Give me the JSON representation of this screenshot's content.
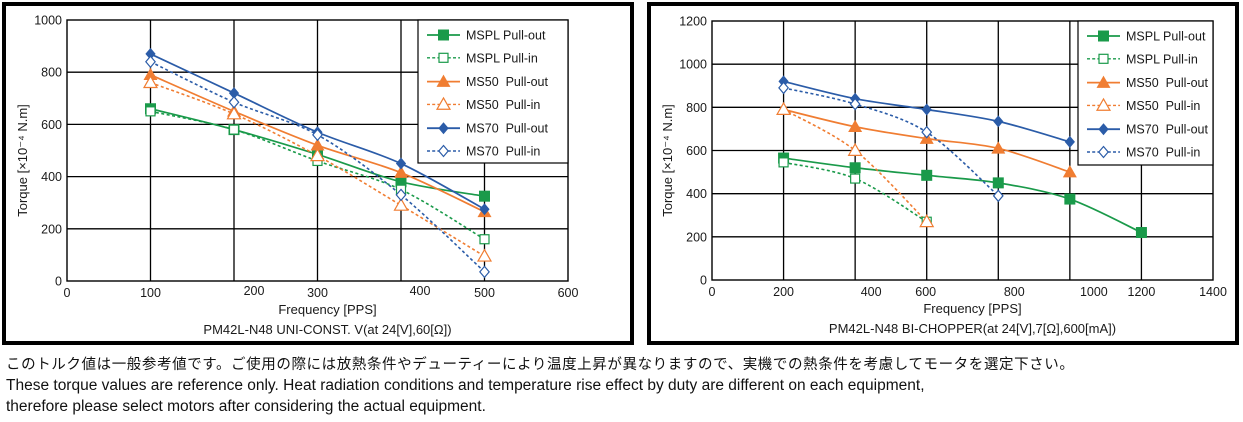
{
  "chart_data": [
    {
      "type": "line",
      "title": "",
      "caption": "PM42L-N48 UNI-CONST. V(at 24[V],60[Ω])",
      "xlabel": "Frequency [PPS]",
      "ylabel": "Torque [×10⁻⁴ N.m]",
      "xlim": [
        0,
        600
      ],
      "ylim": [
        0,
        1000
      ],
      "xticks": [
        0,
        100,
        200,
        300,
        400,
        500,
        600
      ],
      "yticks": [
        0,
        200,
        400,
        600,
        800,
        1000
      ],
      "xgrid": [
        100,
        200,
        300,
        400,
        500
      ],
      "grid": true,
      "legend_position": "top-right",
      "series": [
        {
          "name": "MSPL Pull-out",
          "color": "#1a9a4a",
          "dash": false,
          "marker": "square-filled",
          "x": [
            100,
            200,
            300,
            400,
            500
          ],
          "values": [
            660,
            580,
            485,
            380,
            325
          ]
        },
        {
          "name": "MSPL Pull-in",
          "color": "#1a9a4a",
          "dash": true,
          "marker": "square-open",
          "x": [
            100,
            200,
            300,
            400,
            500
          ],
          "values": [
            650,
            580,
            460,
            350,
            160
          ]
        },
        {
          "name": "MS50  Pull-out",
          "color": "#f07d32",
          "dash": false,
          "marker": "triangle-filled",
          "x": [
            100,
            200,
            300,
            400,
            500
          ],
          "values": [
            790,
            650,
            520,
            415,
            265
          ]
        },
        {
          "name": "MS50  Pull-in",
          "color": "#f07d32",
          "dash": true,
          "marker": "triangle-open",
          "x": [
            100,
            200,
            300,
            400,
            500
          ],
          "values": [
            760,
            640,
            480,
            290,
            95
          ]
        },
        {
          "name": "MS70  Pull-out",
          "color": "#2b5ca8",
          "dash": false,
          "marker": "diamond-filled",
          "x": [
            100,
            200,
            300,
            400,
            500
          ],
          "values": [
            870,
            720,
            570,
            450,
            275
          ]
        },
        {
          "name": "MS70  Pull-in",
          "color": "#2b5ca8",
          "dash": true,
          "marker": "diamond-open",
          "x": [
            100,
            200,
            300,
            400,
            500
          ],
          "values": [
            840,
            685,
            560,
            330,
            35
          ]
        }
      ]
    },
    {
      "type": "line",
      "title": "",
      "caption": "PM42L-N48 BI-CHOPPER(at 24[V],7[Ω],600[mA])",
      "xlabel": "Frequency [PPS]",
      "ylabel": "Torque [×10⁻⁴ N.m]",
      "xlim": [
        0,
        1400
      ],
      "ylim": [
        0,
        1200
      ],
      "xticks": [
        0,
        200,
        400,
        600,
        800,
        1000,
        1200,
        1400
      ],
      "yticks": [
        0,
        200,
        400,
        600,
        800,
        1000,
        1200
      ],
      "xgrid": [
        200,
        400,
        600,
        800,
        1000,
        1200
      ],
      "grid": true,
      "legend_position": "top-right",
      "series": [
        {
          "name": "MSPL Pull-out",
          "color": "#1a9a4a",
          "dash": false,
          "marker": "square-filled",
          "x": [
            200,
            400,
            600,
            800,
            1000,
            1200
          ],
          "values": [
            565,
            520,
            485,
            450,
            375,
            220
          ]
        },
        {
          "name": "MSPL Pull-in",
          "color": "#1a9a4a",
          "dash": true,
          "marker": "square-open",
          "x": [
            200,
            400,
            600
          ],
          "values": [
            545,
            470,
            270
          ]
        },
        {
          "name": "MS50  Pull-out",
          "color": "#f07d32",
          "dash": false,
          "marker": "triangle-filled",
          "x": [
            200,
            400,
            600,
            800,
            1000
          ],
          "values": [
            790,
            710,
            655,
            610,
            500
          ]
        },
        {
          "name": "MS50  Pull-in",
          "color": "#f07d32",
          "dash": true,
          "marker": "triangle-open",
          "x": [
            200,
            400,
            600
          ],
          "values": [
            790,
            600,
            270
          ]
        },
        {
          "name": "MS70  Pull-out",
          "color": "#2b5ca8",
          "dash": false,
          "marker": "diamond-filled",
          "x": [
            200,
            400,
            600,
            800,
            1000
          ],
          "values": [
            920,
            840,
            790,
            735,
            640
          ]
        },
        {
          "name": "MS70  Pull-in",
          "color": "#2b5ca8",
          "dash": true,
          "marker": "diamond-open",
          "x": [
            200,
            400,
            600,
            800
          ],
          "values": [
            890,
            815,
            685,
            390
          ]
        }
      ]
    }
  ],
  "notes": {
    "japanese": "このトルク値は一般参考値です。ご使用の際には放熱条件やデューティーにより温度上昇が異なりますので、実機での熱条件を考慮してモータを選定下さい。",
    "english_line1": "These torque values are reference only. Heat radiation conditions and temperature rise effect by duty are different on each equipment,",
    "english_line2": "therefore please select motors after considering the actual equipment."
  }
}
